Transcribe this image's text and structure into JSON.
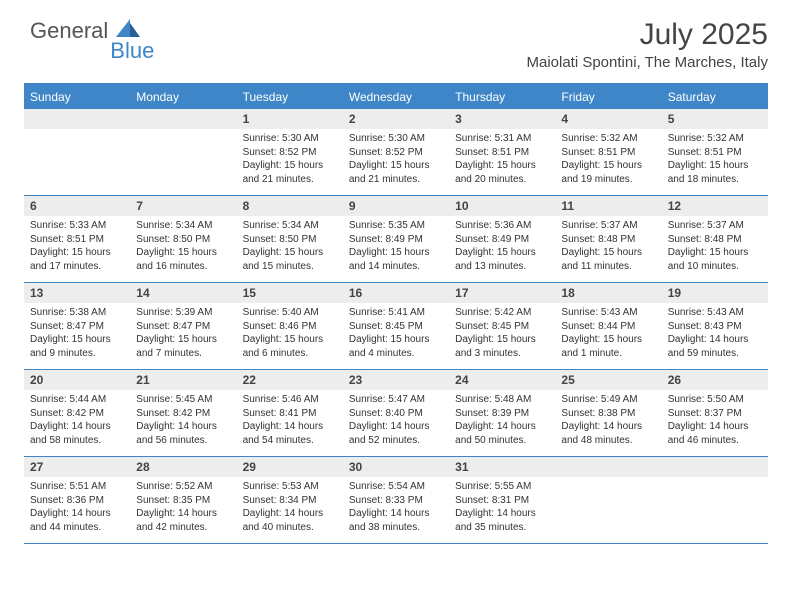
{
  "brand": {
    "general": "General",
    "blue": "Blue"
  },
  "title": {
    "month_year": "July 2025",
    "location": "Maiolati Spontini, The Marches, Italy"
  },
  "colors": {
    "accent": "#3e86c7",
    "daynum_bg": "#ededed",
    "text": "#333333",
    "bg": "#ffffff"
  },
  "weekdays": [
    "Sunday",
    "Monday",
    "Tuesday",
    "Wednesday",
    "Thursday",
    "Friday",
    "Saturday"
  ],
  "weeks": [
    [
      null,
      null,
      {
        "n": "1",
        "sr": "Sunrise: 5:30 AM",
        "ss": "Sunset: 8:52 PM",
        "dl": "Daylight: 15 hours and 21 minutes."
      },
      {
        "n": "2",
        "sr": "Sunrise: 5:30 AM",
        "ss": "Sunset: 8:52 PM",
        "dl": "Daylight: 15 hours and 21 minutes."
      },
      {
        "n": "3",
        "sr": "Sunrise: 5:31 AM",
        "ss": "Sunset: 8:51 PM",
        "dl": "Daylight: 15 hours and 20 minutes."
      },
      {
        "n": "4",
        "sr": "Sunrise: 5:32 AM",
        "ss": "Sunset: 8:51 PM",
        "dl": "Daylight: 15 hours and 19 minutes."
      },
      {
        "n": "5",
        "sr": "Sunrise: 5:32 AM",
        "ss": "Sunset: 8:51 PM",
        "dl": "Daylight: 15 hours and 18 minutes."
      }
    ],
    [
      {
        "n": "6",
        "sr": "Sunrise: 5:33 AM",
        "ss": "Sunset: 8:51 PM",
        "dl": "Daylight: 15 hours and 17 minutes."
      },
      {
        "n": "7",
        "sr": "Sunrise: 5:34 AM",
        "ss": "Sunset: 8:50 PM",
        "dl": "Daylight: 15 hours and 16 minutes."
      },
      {
        "n": "8",
        "sr": "Sunrise: 5:34 AM",
        "ss": "Sunset: 8:50 PM",
        "dl": "Daylight: 15 hours and 15 minutes."
      },
      {
        "n": "9",
        "sr": "Sunrise: 5:35 AM",
        "ss": "Sunset: 8:49 PM",
        "dl": "Daylight: 15 hours and 14 minutes."
      },
      {
        "n": "10",
        "sr": "Sunrise: 5:36 AM",
        "ss": "Sunset: 8:49 PM",
        "dl": "Daylight: 15 hours and 13 minutes."
      },
      {
        "n": "11",
        "sr": "Sunrise: 5:37 AM",
        "ss": "Sunset: 8:48 PM",
        "dl": "Daylight: 15 hours and 11 minutes."
      },
      {
        "n": "12",
        "sr": "Sunrise: 5:37 AM",
        "ss": "Sunset: 8:48 PM",
        "dl": "Daylight: 15 hours and 10 minutes."
      }
    ],
    [
      {
        "n": "13",
        "sr": "Sunrise: 5:38 AM",
        "ss": "Sunset: 8:47 PM",
        "dl": "Daylight: 15 hours and 9 minutes."
      },
      {
        "n": "14",
        "sr": "Sunrise: 5:39 AM",
        "ss": "Sunset: 8:47 PM",
        "dl": "Daylight: 15 hours and 7 minutes."
      },
      {
        "n": "15",
        "sr": "Sunrise: 5:40 AM",
        "ss": "Sunset: 8:46 PM",
        "dl": "Daylight: 15 hours and 6 minutes."
      },
      {
        "n": "16",
        "sr": "Sunrise: 5:41 AM",
        "ss": "Sunset: 8:45 PM",
        "dl": "Daylight: 15 hours and 4 minutes."
      },
      {
        "n": "17",
        "sr": "Sunrise: 5:42 AM",
        "ss": "Sunset: 8:45 PM",
        "dl": "Daylight: 15 hours and 3 minutes."
      },
      {
        "n": "18",
        "sr": "Sunrise: 5:43 AM",
        "ss": "Sunset: 8:44 PM",
        "dl": "Daylight: 15 hours and 1 minute."
      },
      {
        "n": "19",
        "sr": "Sunrise: 5:43 AM",
        "ss": "Sunset: 8:43 PM",
        "dl": "Daylight: 14 hours and 59 minutes."
      }
    ],
    [
      {
        "n": "20",
        "sr": "Sunrise: 5:44 AM",
        "ss": "Sunset: 8:42 PM",
        "dl": "Daylight: 14 hours and 58 minutes."
      },
      {
        "n": "21",
        "sr": "Sunrise: 5:45 AM",
        "ss": "Sunset: 8:42 PM",
        "dl": "Daylight: 14 hours and 56 minutes."
      },
      {
        "n": "22",
        "sr": "Sunrise: 5:46 AM",
        "ss": "Sunset: 8:41 PM",
        "dl": "Daylight: 14 hours and 54 minutes."
      },
      {
        "n": "23",
        "sr": "Sunrise: 5:47 AM",
        "ss": "Sunset: 8:40 PM",
        "dl": "Daylight: 14 hours and 52 minutes."
      },
      {
        "n": "24",
        "sr": "Sunrise: 5:48 AM",
        "ss": "Sunset: 8:39 PM",
        "dl": "Daylight: 14 hours and 50 minutes."
      },
      {
        "n": "25",
        "sr": "Sunrise: 5:49 AM",
        "ss": "Sunset: 8:38 PM",
        "dl": "Daylight: 14 hours and 48 minutes."
      },
      {
        "n": "26",
        "sr": "Sunrise: 5:50 AM",
        "ss": "Sunset: 8:37 PM",
        "dl": "Daylight: 14 hours and 46 minutes."
      }
    ],
    [
      {
        "n": "27",
        "sr": "Sunrise: 5:51 AM",
        "ss": "Sunset: 8:36 PM",
        "dl": "Daylight: 14 hours and 44 minutes."
      },
      {
        "n": "28",
        "sr": "Sunrise: 5:52 AM",
        "ss": "Sunset: 8:35 PM",
        "dl": "Daylight: 14 hours and 42 minutes."
      },
      {
        "n": "29",
        "sr": "Sunrise: 5:53 AM",
        "ss": "Sunset: 8:34 PM",
        "dl": "Daylight: 14 hours and 40 minutes."
      },
      {
        "n": "30",
        "sr": "Sunrise: 5:54 AM",
        "ss": "Sunset: 8:33 PM",
        "dl": "Daylight: 14 hours and 38 minutes."
      },
      {
        "n": "31",
        "sr": "Sunrise: 5:55 AM",
        "ss": "Sunset: 8:31 PM",
        "dl": "Daylight: 14 hours and 35 minutes."
      },
      null,
      null
    ]
  ]
}
